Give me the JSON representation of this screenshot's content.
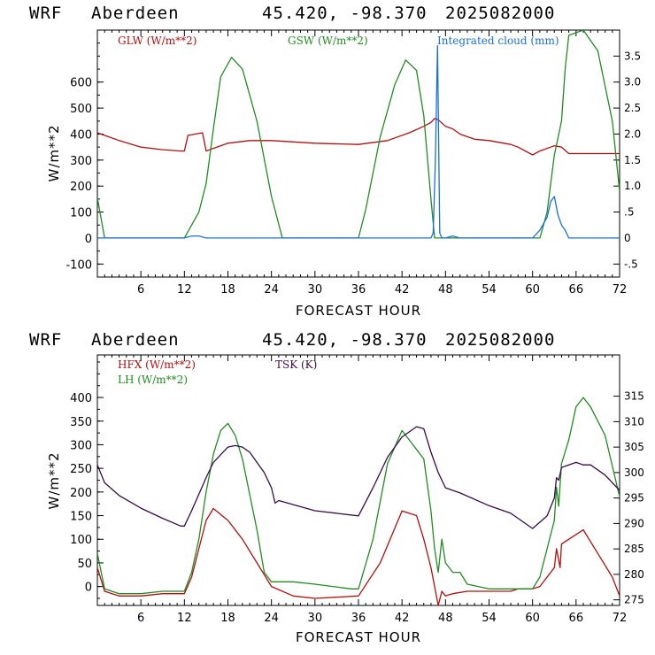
{
  "header": {
    "model": "WRF",
    "site": "Aberdeen",
    "coords": "45.420, -98.370",
    "run": "2025082000"
  },
  "chart_data": [
    {
      "type": "line",
      "xlabel": "FORECAST HOUR",
      "ylabel": "W/m**2",
      "xlim": [
        0,
        72
      ],
      "ylim": [
        -150,
        800
      ],
      "y2lim": [
        -0.75,
        4.0
      ],
      "xticks": [
        6,
        12,
        18,
        24,
        30,
        36,
        42,
        48,
        54,
        60,
        66,
        72
      ],
      "yticks": [
        -100,
        0,
        100,
        200,
        300,
        400,
        500,
        600
      ],
      "y2ticks": [
        -0.5,
        0,
        0.5,
        1.0,
        1.5,
        2.0,
        2.5,
        3.0,
        3.5
      ],
      "y2tick_labels": [
        "-.5",
        "0",
        ".5",
        "1.0",
        "1.5",
        "2.0",
        "2.5",
        "3.0",
        "3.5"
      ],
      "series": [
        {
          "name": "GLW (W/m**2)",
          "color": "#b01010",
          "axis": "left",
          "x": [
            0,
            3,
            6,
            9,
            11.5,
            12,
            12.5,
            13.5,
            14.5,
            15,
            16,
            18,
            21,
            24,
            30,
            36,
            40,
            43,
            45,
            46,
            46.5,
            47,
            48,
            49,
            50,
            51,
            52,
            54,
            57,
            58,
            60,
            61,
            63,
            64,
            65,
            72
          ],
          "y": [
            405,
            375,
            350,
            340,
            335,
            335,
            395,
            400,
            405,
            335,
            345,
            365,
            375,
            375,
            365,
            360,
            375,
            405,
            430,
            445,
            460,
            455,
            430,
            420,
            400,
            390,
            380,
            375,
            360,
            350,
            320,
            335,
            355,
            350,
            325,
            325
          ]
        },
        {
          "name": "GSW (W/m**2)",
          "color": "#228b22",
          "axis": "left",
          "x": [
            0,
            1,
            2,
            11,
            12,
            14,
            15,
            16,
            17,
            18.5,
            20,
            22,
            24,
            25.5,
            26,
            35,
            36,
            37,
            39,
            41,
            42.5,
            44,
            45,
            46,
            46.5,
            47,
            48,
            59,
            60,
            61,
            62,
            63,
            64,
            64.5,
            65,
            67,
            69,
            71,
            72
          ],
          "y": [
            155,
            0,
            0,
            0,
            0,
            100,
            210,
            420,
            620,
            695,
            650,
            450,
            160,
            0,
            0,
            0,
            0,
            110,
            390,
            590,
            685,
            645,
            470,
            150,
            0,
            0,
            0,
            0,
            0,
            0,
            100,
            320,
            450,
            650,
            780,
            800,
            720,
            450,
            180
          ]
        },
        {
          "name": "Integrated cloud (mm)",
          "color": "#1c6fd8",
          "axis": "right",
          "x": [
            0,
            12,
            13,
            14,
            15,
            16,
            46,
            46.3,
            46.6,
            46.9,
            47.2,
            47.5,
            48,
            49,
            50,
            59,
            60,
            61,
            62,
            62.5,
            63,
            63.5,
            64,
            64.5,
            65,
            72
          ],
          "y": [
            0,
            0,
            0.04,
            0.04,
            0,
            0,
            0,
            0.1,
            1.5,
            3.7,
            0.1,
            0,
            0,
            0.04,
            0,
            0,
            0,
            0.15,
            0.4,
            0.7,
            0.8,
            0.45,
            0.25,
            0.15,
            0,
            0
          ]
        }
      ]
    },
    {
      "type": "line",
      "xlabel": "FORECAST HOUR",
      "ylabel": "W/m**2",
      "xlim": [
        0,
        72
      ],
      "ylim": [
        -40,
        490
      ],
      "y2lim": [
        273.9,
        323.1
      ],
      "xticks": [
        6,
        12,
        18,
        24,
        30,
        36,
        42,
        48,
        54,
        60,
        66,
        72
      ],
      "yticks": [
        0,
        50,
        100,
        150,
        200,
        250,
        300,
        350,
        400
      ],
      "y2ticks": [
        275,
        280,
        285,
        290,
        295,
        300,
        305,
        310,
        315
      ],
      "series": [
        {
          "name": "HFX (W/m**2)",
          "color": "#b01010",
          "axis": "left",
          "x": [
            0,
            1,
            3,
            6,
            9,
            12,
            13,
            14,
            15,
            16,
            18,
            20,
            22,
            24,
            27,
            30,
            36,
            39,
            42,
            44,
            45,
            46,
            46.5,
            47,
            47.5,
            48,
            49,
            51,
            54,
            57,
            58,
            60,
            61,
            63,
            63.3,
            63.8,
            64,
            66,
            67,
            69,
            71,
            72
          ],
          "y": [
            40,
            -10,
            -20,
            -20,
            -15,
            -15,
            20,
            80,
            140,
            165,
            140,
            100,
            50,
            0,
            -20,
            -25,
            -20,
            50,
            160,
            150,
            100,
            40,
            0,
            -40,
            -10,
            -20,
            -15,
            -10,
            -10,
            -10,
            -5,
            -5,
            0,
            40,
            80,
            40,
            90,
            110,
            120,
            70,
            20,
            -20
          ]
        },
        {
          "name": "LH (W/m**2)",
          "color": "#228b22",
          "axis": "left",
          "x": [
            0,
            1,
            3,
            6,
            9,
            12,
            13,
            14,
            15,
            16,
            17,
            18,
            19,
            20,
            22,
            23,
            24,
            27,
            30,
            35,
            36,
            38,
            40,
            42,
            43,
            44,
            45,
            46,
            46.5,
            47,
            47.5,
            48,
            49,
            50,
            51,
            54,
            59,
            60,
            61,
            62,
            63,
            63.3,
            63.6,
            64,
            65,
            66,
            67,
            68,
            70,
            72
          ],
          "y": [
            70,
            -5,
            -15,
            -15,
            -10,
            -10,
            30,
            100,
            200,
            280,
            330,
            345,
            320,
            270,
            120,
            30,
            10,
            10,
            5,
            -5,
            -5,
            100,
            260,
            330,
            310,
            290,
            270,
            160,
            80,
            30,
            100,
            50,
            30,
            30,
            5,
            -5,
            -5,
            -5,
            20,
            80,
            140,
            210,
            170,
            260,
            310,
            380,
            400,
            380,
            320,
            190
          ]
        },
        {
          "name": "TSK (K)",
          "color": "#3a0a4a",
          "axis": "right",
          "x": [
            0,
            1,
            3,
            6,
            9,
            11.5,
            12,
            13,
            15,
            16,
            18,
            19,
            20,
            21,
            22,
            23,
            24,
            24.5,
            25,
            30,
            36,
            38,
            40,
            42,
            44,
            45,
            46,
            47,
            48,
            50,
            54,
            57,
            60,
            62,
            63,
            63.3,
            63.6,
            64,
            66,
            67,
            68,
            70,
            72
          ],
          "y": [
            301.5,
            298,
            295.5,
            293,
            291,
            289.5,
            289.5,
            292.5,
            299,
            302,
            305,
            305.3,
            305,
            304,
            302,
            300,
            297,
            294,
            294.5,
            292.5,
            291.5,
            297,
            303,
            307,
            309,
            308.6,
            304,
            300,
            297,
            296,
            293.5,
            292,
            289,
            291.5,
            295,
            299,
            298.5,
            301,
            302,
            301.5,
            301.5,
            299.5,
            296.5
          ]
        }
      ]
    }
  ]
}
